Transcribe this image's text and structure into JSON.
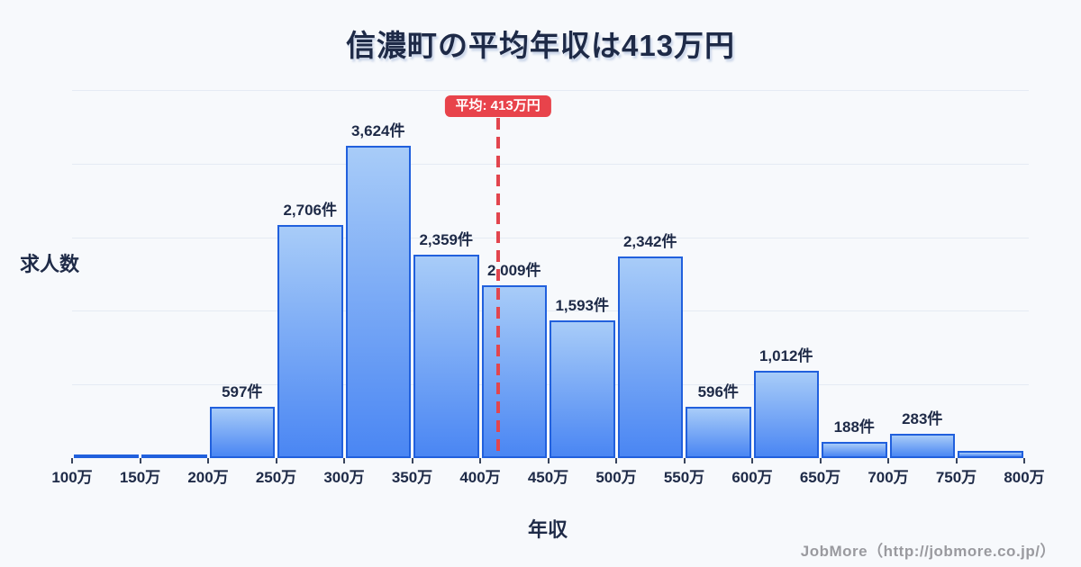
{
  "page": {
    "title": "信濃町の平均年収は413万円",
    "footer": "JobMore（http://jobmore.co.jp/）"
  },
  "colors": {
    "background": "#f7f9fc",
    "text_dark": "#1e2a47",
    "gridline": "#e5ebf4",
    "bar_fill_top": "#a8ccf8",
    "bar_fill_bottom": "#4a86f3",
    "bar_border": "#2160dd",
    "average_red": "#e8434b",
    "footer_gray": "#9a9a9f"
  },
  "chart_data": {
    "type": "bar",
    "title": "信濃町の平均年収は413万円",
    "xlabel": "年収",
    "ylabel": "求人数",
    "x_ticks": [
      "100万",
      "150万",
      "200万",
      "250万",
      "300万",
      "350万",
      "400万",
      "450万",
      "500万",
      "550万",
      "600万",
      "650万",
      "700万",
      "750万",
      "800万"
    ],
    "bins": [
      {
        "range": "100万-150万",
        "value": 40,
        "label": ""
      },
      {
        "range": "150万-200万",
        "value": 40,
        "label": ""
      },
      {
        "range": "200万-250万",
        "value": 597,
        "label": "597件"
      },
      {
        "range": "250万-300万",
        "value": 2706,
        "label": "2,706件"
      },
      {
        "range": "300万-350万",
        "value": 3624,
        "label": "3,624件"
      },
      {
        "range": "350万-400万",
        "value": 2359,
        "label": "2,359件"
      },
      {
        "range": "400万-450万",
        "value": 2009,
        "label": "2,009件"
      },
      {
        "range": "450万-500万",
        "value": 1593,
        "label": "1,593件"
      },
      {
        "range": "500万-550万",
        "value": 2342,
        "label": "2,342件"
      },
      {
        "range": "550万-600万",
        "value": 596,
        "label": "596件"
      },
      {
        "range": "600万-650万",
        "value": 1012,
        "label": "1,012件"
      },
      {
        "range": "650万-700万",
        "value": 188,
        "label": "188件"
      },
      {
        "range": "700万-750万",
        "value": 283,
        "label": "283件"
      },
      {
        "range": "750万-800万",
        "value": 85,
        "label": ""
      }
    ],
    "average": {
      "value": 413,
      "label": "平均: 413万円",
      "x_start": 100,
      "x_step": 50
    },
    "ylim": [
      0,
      4270
    ],
    "grid": true,
    "legend": false
  }
}
